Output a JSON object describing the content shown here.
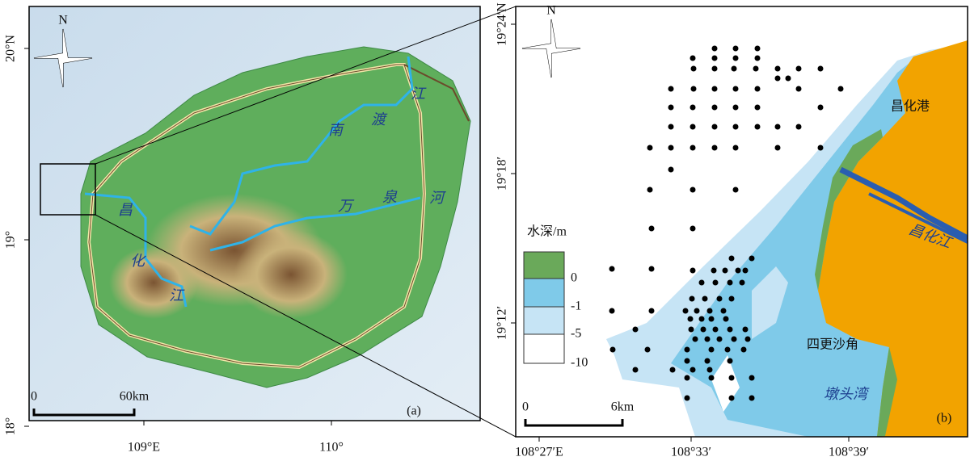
{
  "panel_a": {
    "north_label": "N",
    "lat_labels": [
      "20°N",
      "19°",
      "18°"
    ],
    "lon_labels": [
      "109°E",
      "110°"
    ],
    "scale_labels": [
      "0",
      "60km"
    ],
    "panel_label": "(a)",
    "river_labels": [
      "南",
      "渡",
      "江",
      "昌",
      "化",
      "江",
      "万",
      "泉",
      "河"
    ]
  },
  "panel_b": {
    "north_label": "N",
    "lat_labels": [
      "19°24′N",
      "19°18′",
      "19°12′"
    ],
    "lon_labels": [
      "108°27′E",
      "108°33′",
      "108°39′"
    ],
    "legend": {
      "title": "水深/m",
      "labels": [
        "0",
        "-1",
        "-5",
        "-10"
      ]
    },
    "place_labels": [
      "昌化港",
      "昌化江",
      "四更沙角",
      "墩头湾"
    ],
    "scale_labels": [
      "0",
      "6km"
    ],
    "panel_label": "(b)"
  }
}
